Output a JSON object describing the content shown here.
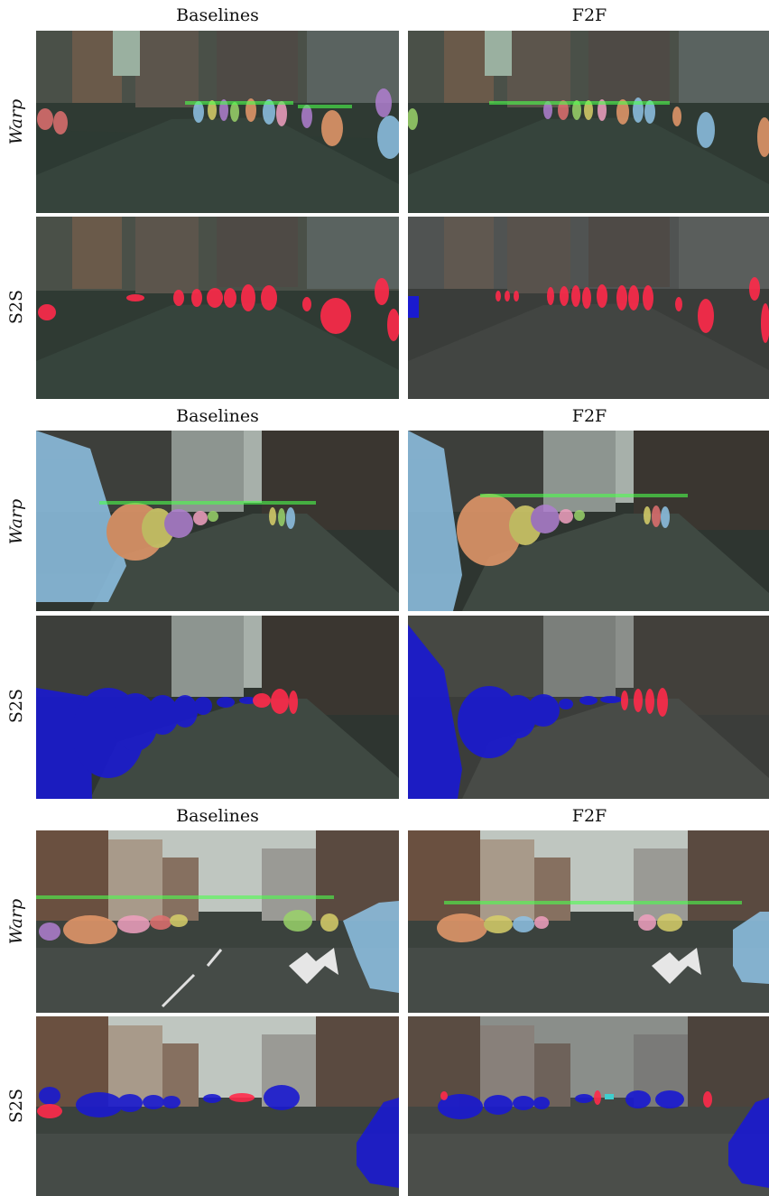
{
  "figure": {
    "groups": [
      {
        "headers": {
          "left": "Baselines",
          "right": "F2F"
        },
        "rows": [
          {
            "label": "Warp",
            "italic": true
          },
          {
            "label": "S2S",
            "italic": false
          }
        ]
      },
      {
        "headers": {
          "left": "Baselines",
          "right": "F2F"
        },
        "rows": [
          {
            "label": "Warp",
            "italic": true
          },
          {
            "label": "S2S",
            "italic": false
          }
        ]
      },
      {
        "headers": {
          "left": "Baselines",
          "right": "F2F"
        },
        "rows": [
          {
            "label": "Warp",
            "italic": true
          },
          {
            "label": "S2S",
            "italic": false
          }
        ]
      }
    ]
  },
  "colors": {
    "person_mask": "#ff2a4a",
    "car_mask": "#1a1acf",
    "instance_palette": [
      "#e89a6b",
      "#8fc3e6",
      "#d8d06a",
      "#b07fd0",
      "#e07070",
      "#9ad36a",
      "#6fc8c0",
      "#f0a0c0"
    ],
    "detection_label": "#4dff4d"
  }
}
